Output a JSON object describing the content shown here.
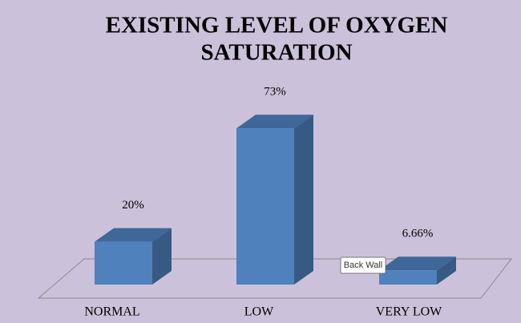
{
  "chart_data": {
    "type": "bar3d",
    "title": [
      "EXISTING LEVEL OF  OXYGEN",
      "SATURATION"
    ],
    "categories": [
      "NORMAL",
      "LOW",
      "VERY LOW"
    ],
    "values": [
      20,
      73,
      6.66
    ],
    "value_labels": [
      "20%",
      "73%",
      "6.66%"
    ],
    "color": "#4f81bd",
    "tooltip": "Back Wall"
  }
}
